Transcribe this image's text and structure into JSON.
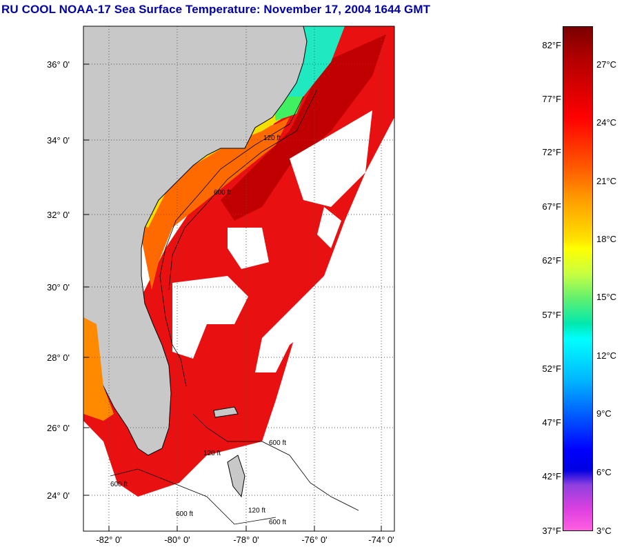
{
  "title": "RU COOL  NOAA-17  Sea Surface Temperature:  November 17, 2004 1644 GMT",
  "lat_labels": [
    "36° 0'",
    "34° 0'",
    "32° 0'",
    "30° 0'",
    "28° 0'",
    "26° 0'",
    "24° 0'"
  ],
  "lon_labels": [
    "-82° 0'",
    "-80° 0'",
    "-78° 0'",
    "-76° 0'",
    "-74° 0'"
  ],
  "colorbar": {
    "fahrenheit_labels": [
      "82°F",
      "77°F",
      "72°F",
      "67°F",
      "62°F",
      "57°F",
      "52°F",
      "47°F",
      "42°F",
      "37°F"
    ],
    "celsius_labels": [
      "27°C",
      "24°C",
      "21°C",
      "18°C",
      "15°C",
      "12°C",
      "9°C",
      "6°C",
      "3°C"
    ]
  },
  "contour_labels": [
    "120 ft",
    "600 ft",
    "120 ft",
    "600 ft",
    "600 ft",
    "600 ft",
    "120 ft",
    "600 ft"
  ],
  "colors": {
    "land": "#c8c8c8",
    "title": "#0000a8",
    "cloud": "#ffffff"
  }
}
